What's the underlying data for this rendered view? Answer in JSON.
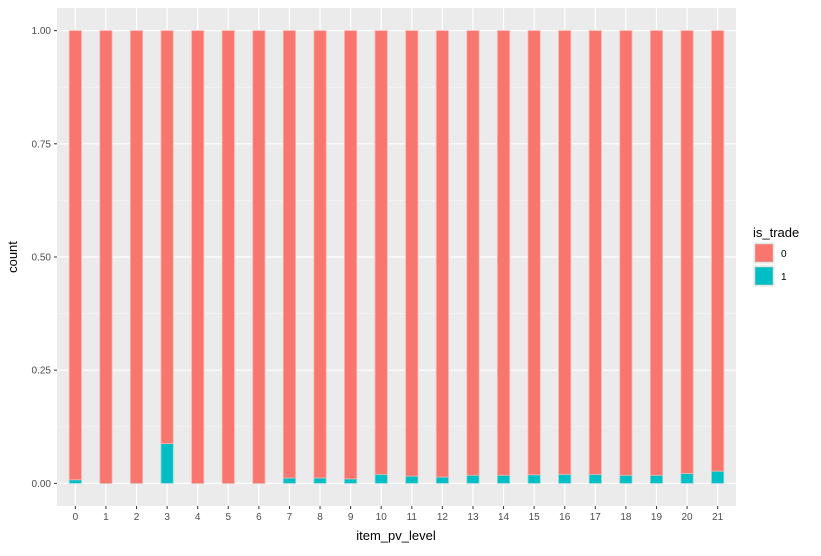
{
  "chart_data": {
    "type": "bar",
    "stacked": true,
    "xlabel": "item_pv_level",
    "ylabel": "count",
    "categories": [
      "0",
      "1",
      "2",
      "3",
      "4",
      "5",
      "6",
      "7",
      "8",
      "9",
      "10",
      "11",
      "12",
      "13",
      "14",
      "15",
      "16",
      "17",
      "18",
      "19",
      "20",
      "21"
    ],
    "y_ticks": [
      "0.00",
      "0.25",
      "0.50",
      "0.75",
      "1.00"
    ],
    "ylim": [
      -0.05,
      1.05
    ],
    "grid": true,
    "legend": {
      "title": "is_trade",
      "placement": "right"
    },
    "series": [
      {
        "name": "0",
        "color": "#F8766D",
        "values": [
          0.992,
          1.0,
          1.0,
          0.912,
          1.0,
          1.0,
          1.0,
          0.988,
          0.988,
          0.99,
          0.98,
          0.984,
          0.986,
          0.982,
          0.982,
          0.981,
          0.98,
          0.98,
          0.982,
          0.982,
          0.978,
          0.973
        ]
      },
      {
        "name": "1",
        "color": "#00BFC4",
        "values": [
          0.008,
          0.0,
          0.0,
          0.088,
          0.0,
          0.0,
          0.0,
          0.012,
          0.012,
          0.01,
          0.02,
          0.016,
          0.014,
          0.018,
          0.018,
          0.019,
          0.02,
          0.02,
          0.018,
          0.018,
          0.022,
          0.027
        ]
      }
    ]
  }
}
